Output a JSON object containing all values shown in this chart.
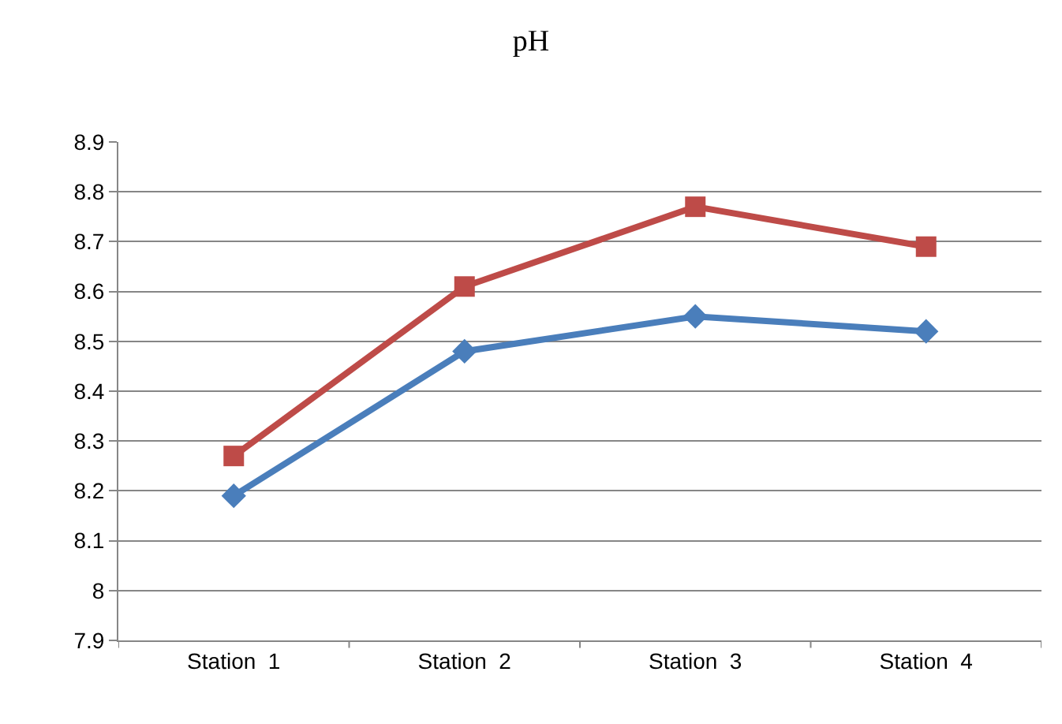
{
  "chart_data": {
    "type": "line",
    "title": "pH",
    "categories": [
      "Station  1",
      "Station  2",
      "Station  3",
      "Station  4"
    ],
    "series": [
      {
        "color": "#4a7ebb",
        "values": [
          8.19,
          8.48,
          8.55,
          8.52
        ],
        "marker": "diamond"
      },
      {
        "color": "#be4b48",
        "values": [
          8.27,
          8.61,
          8.77,
          8.69
        ],
        "marker": "square"
      }
    ],
    "ylim": [
      7.9,
      8.9
    ],
    "yticks": [
      7.9,
      8,
      8.1,
      8.2,
      8.3,
      8.4,
      8.5,
      8.6,
      8.7,
      8.8,
      8.9
    ],
    "grid": "y",
    "line_style": "solid"
  }
}
